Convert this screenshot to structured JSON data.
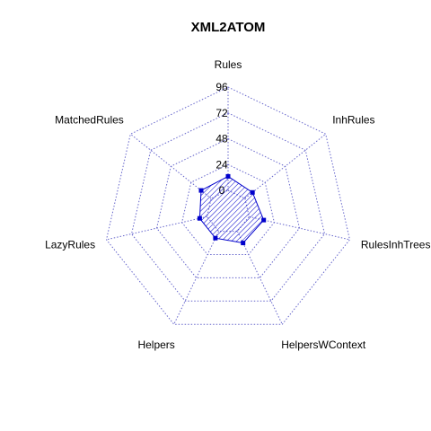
{
  "chart_data": {
    "type": "radar",
    "title": "XML2ATOM",
    "axes": [
      "Rules",
      "InhRules",
      "RulesInhTrees",
      "HelpersWContext",
      "Helpers",
      "LazyRules",
      "MatchedRules"
    ],
    "ticks": [
      0,
      24,
      48,
      72,
      96
    ],
    "range": [
      0,
      96
    ],
    "grid": true,
    "series": [
      {
        "values": [
          13,
          9,
          14,
          12,
          7,
          7,
          12
        ]
      }
    ],
    "colors": {
      "grid": "#6666cc",
      "series": "#0000cc",
      "text": "#000000"
    }
  }
}
